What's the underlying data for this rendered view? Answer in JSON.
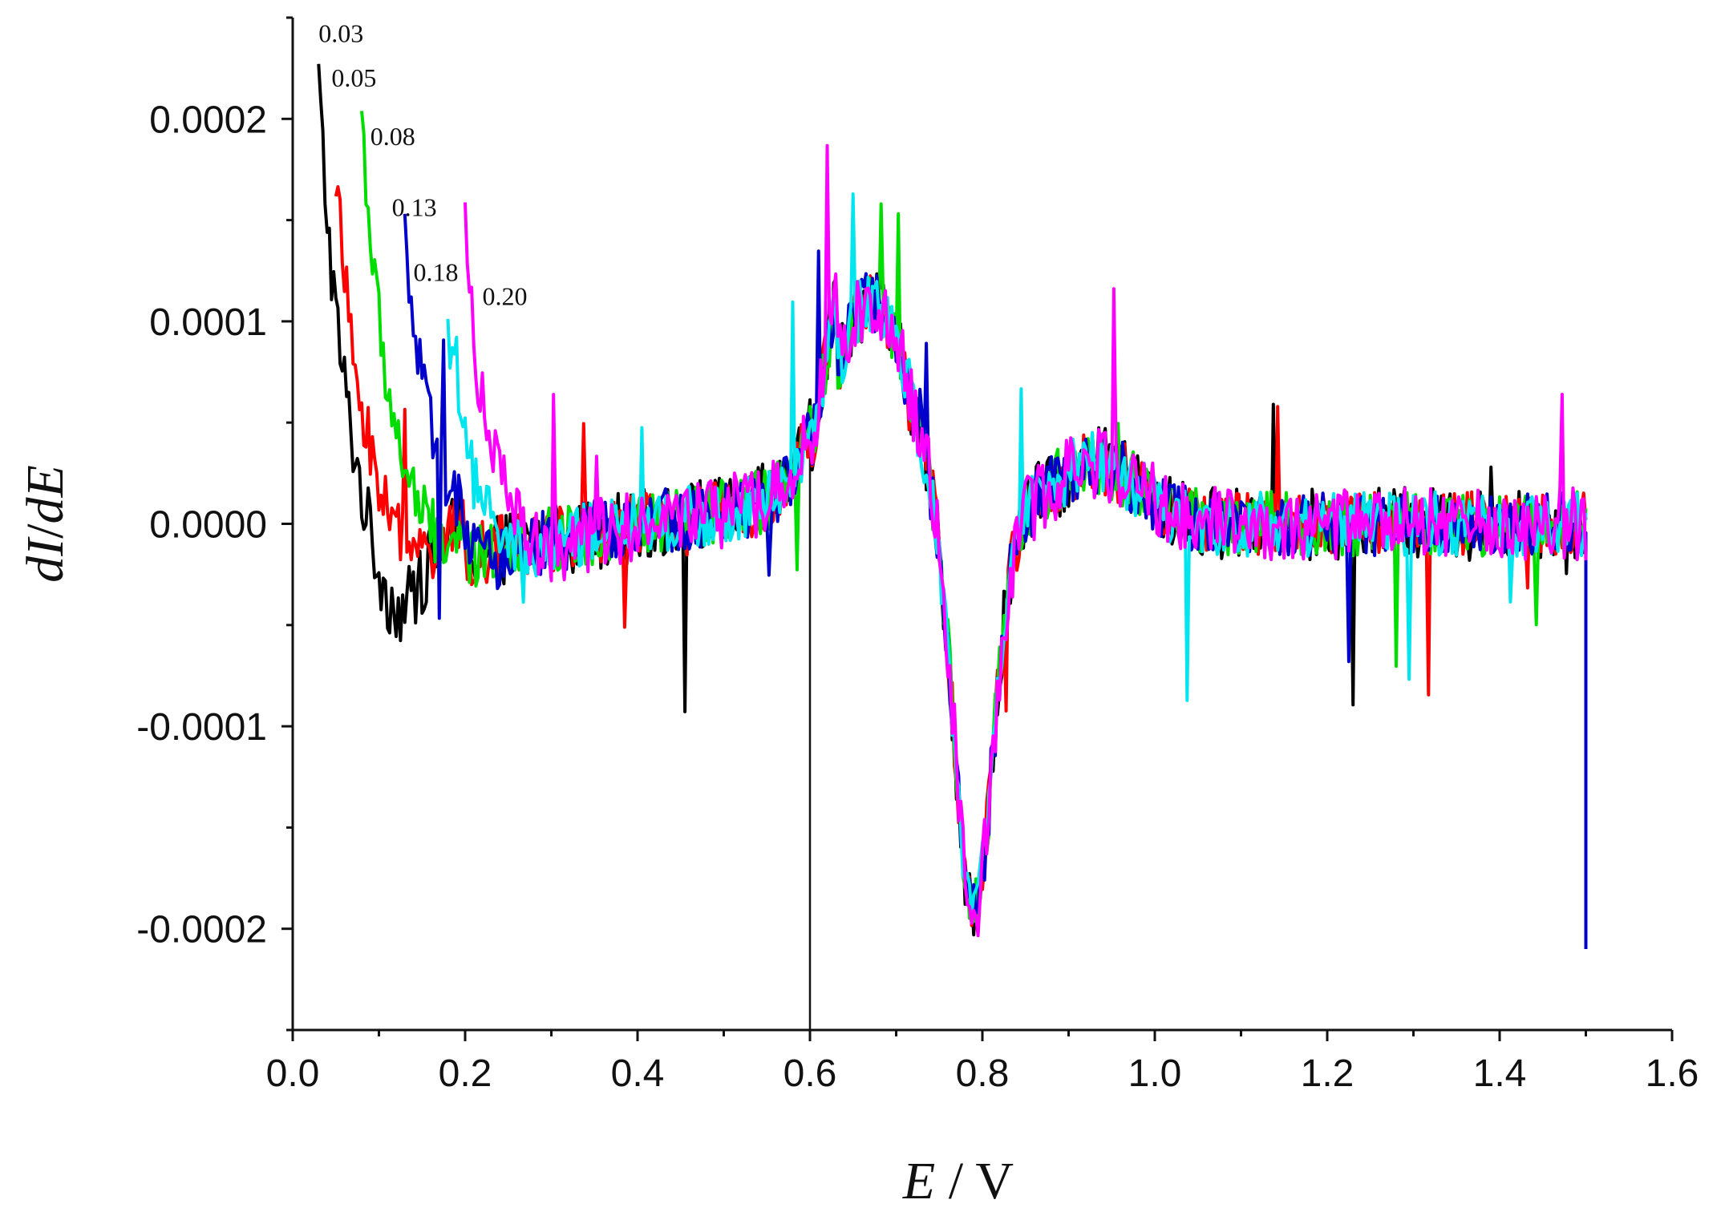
{
  "chart_data": {
    "type": "line",
    "ylabel": "dI/dE",
    "xlabel": "E / V",
    "xlim": [
      0.0,
      1.6
    ],
    "ylim": [
      -0.00025,
      0.00025
    ],
    "x_ticks": [
      "0.0",
      "0.2",
      "0.4",
      "0.6",
      "0.8",
      "1.0",
      "1.2",
      "1.4",
      "1.6"
    ],
    "y_ticks": [
      "0.0002",
      "0.0001",
      "0.0000",
      "-0.0001",
      "-0.0002"
    ],
    "grid": false,
    "legend": "none",
    "vertical_marker_x": 0.6,
    "series": [
      {
        "name": "0.03",
        "color": "#000000",
        "start": 0.03,
        "start_y": 0.00022,
        "dip": -5e-05,
        "noise": 1.8e-05
      },
      {
        "name": "0.05",
        "color": "#ff0000",
        "start": 0.05,
        "start_y": 0.000175,
        "dip": -2e-05,
        "noise": 1.6e-05
      },
      {
        "name": "0.08",
        "color": "#00dd00",
        "start": 0.08,
        "start_y": 0.000205,
        "dip": -1.5e-05,
        "noise": 1.6e-05
      },
      {
        "name": "0.13",
        "color": "#0000cc",
        "start": 0.13,
        "start_y": 0.000142,
        "dip": -1e-05,
        "noise": 1.6e-05
      },
      {
        "name": "0.18",
        "color": "#00e5ee",
        "start": 0.18,
        "start_y": 0.00011,
        "dip": -1e-05,
        "noise": 1.6e-05
      },
      {
        "name": "0.20",
        "color": "#ff00ff",
        "start": 0.2,
        "start_y": 0.000155,
        "dip": -1e-05,
        "noise": 1.8e-05
      }
    ],
    "features": {
      "anodic_peak": {
        "x": 0.67,
        "y": 0.00011
      },
      "cathodic_peak": {
        "x": 0.79,
        "y": -0.000195
      },
      "end_spike": {
        "x": 1.5,
        "y": -0.00021
      }
    }
  },
  "labels": {
    "y_axis_title_parts": [
      "dI",
      "/",
      "dE"
    ],
    "x_axis_title_parts": [
      "E",
      " / V"
    ]
  }
}
